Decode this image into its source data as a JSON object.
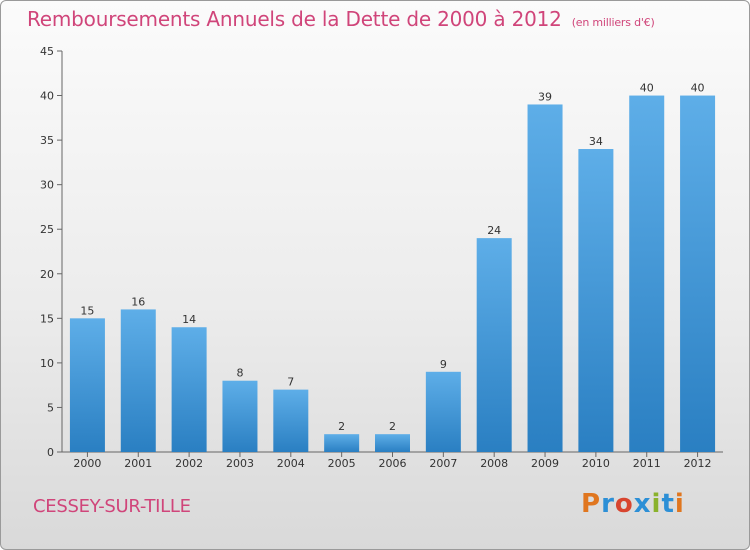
{
  "title": "Remboursements Annuels de la Dette de 2000 à 2012",
  "unit": "(en milliers d'€)",
  "commune": "CESSEY-SUR-TILLE",
  "logo_letters": [
    "P",
    "r",
    "o",
    "x",
    "i",
    "t",
    "i"
  ],
  "colors": {
    "bar_top": "#5eaee8",
    "bar_bottom": "#2a7fc2",
    "title": "#d0457a"
  },
  "chart_data": {
    "type": "bar",
    "categories": [
      "2000",
      "2001",
      "2002",
      "2003",
      "2004",
      "2005",
      "2006",
      "2007",
      "2008",
      "2009",
      "2010",
      "2011",
      "2012"
    ],
    "values": [
      15,
      16,
      14,
      8,
      7,
      2,
      2,
      9,
      24,
      39,
      34,
      40,
      40
    ],
    "ylim": [
      0,
      45
    ],
    "yticks": [
      0,
      5,
      10,
      15,
      20,
      25,
      30,
      35,
      40,
      45
    ],
    "grid": false,
    "xlabel": "",
    "ylabel": ""
  }
}
